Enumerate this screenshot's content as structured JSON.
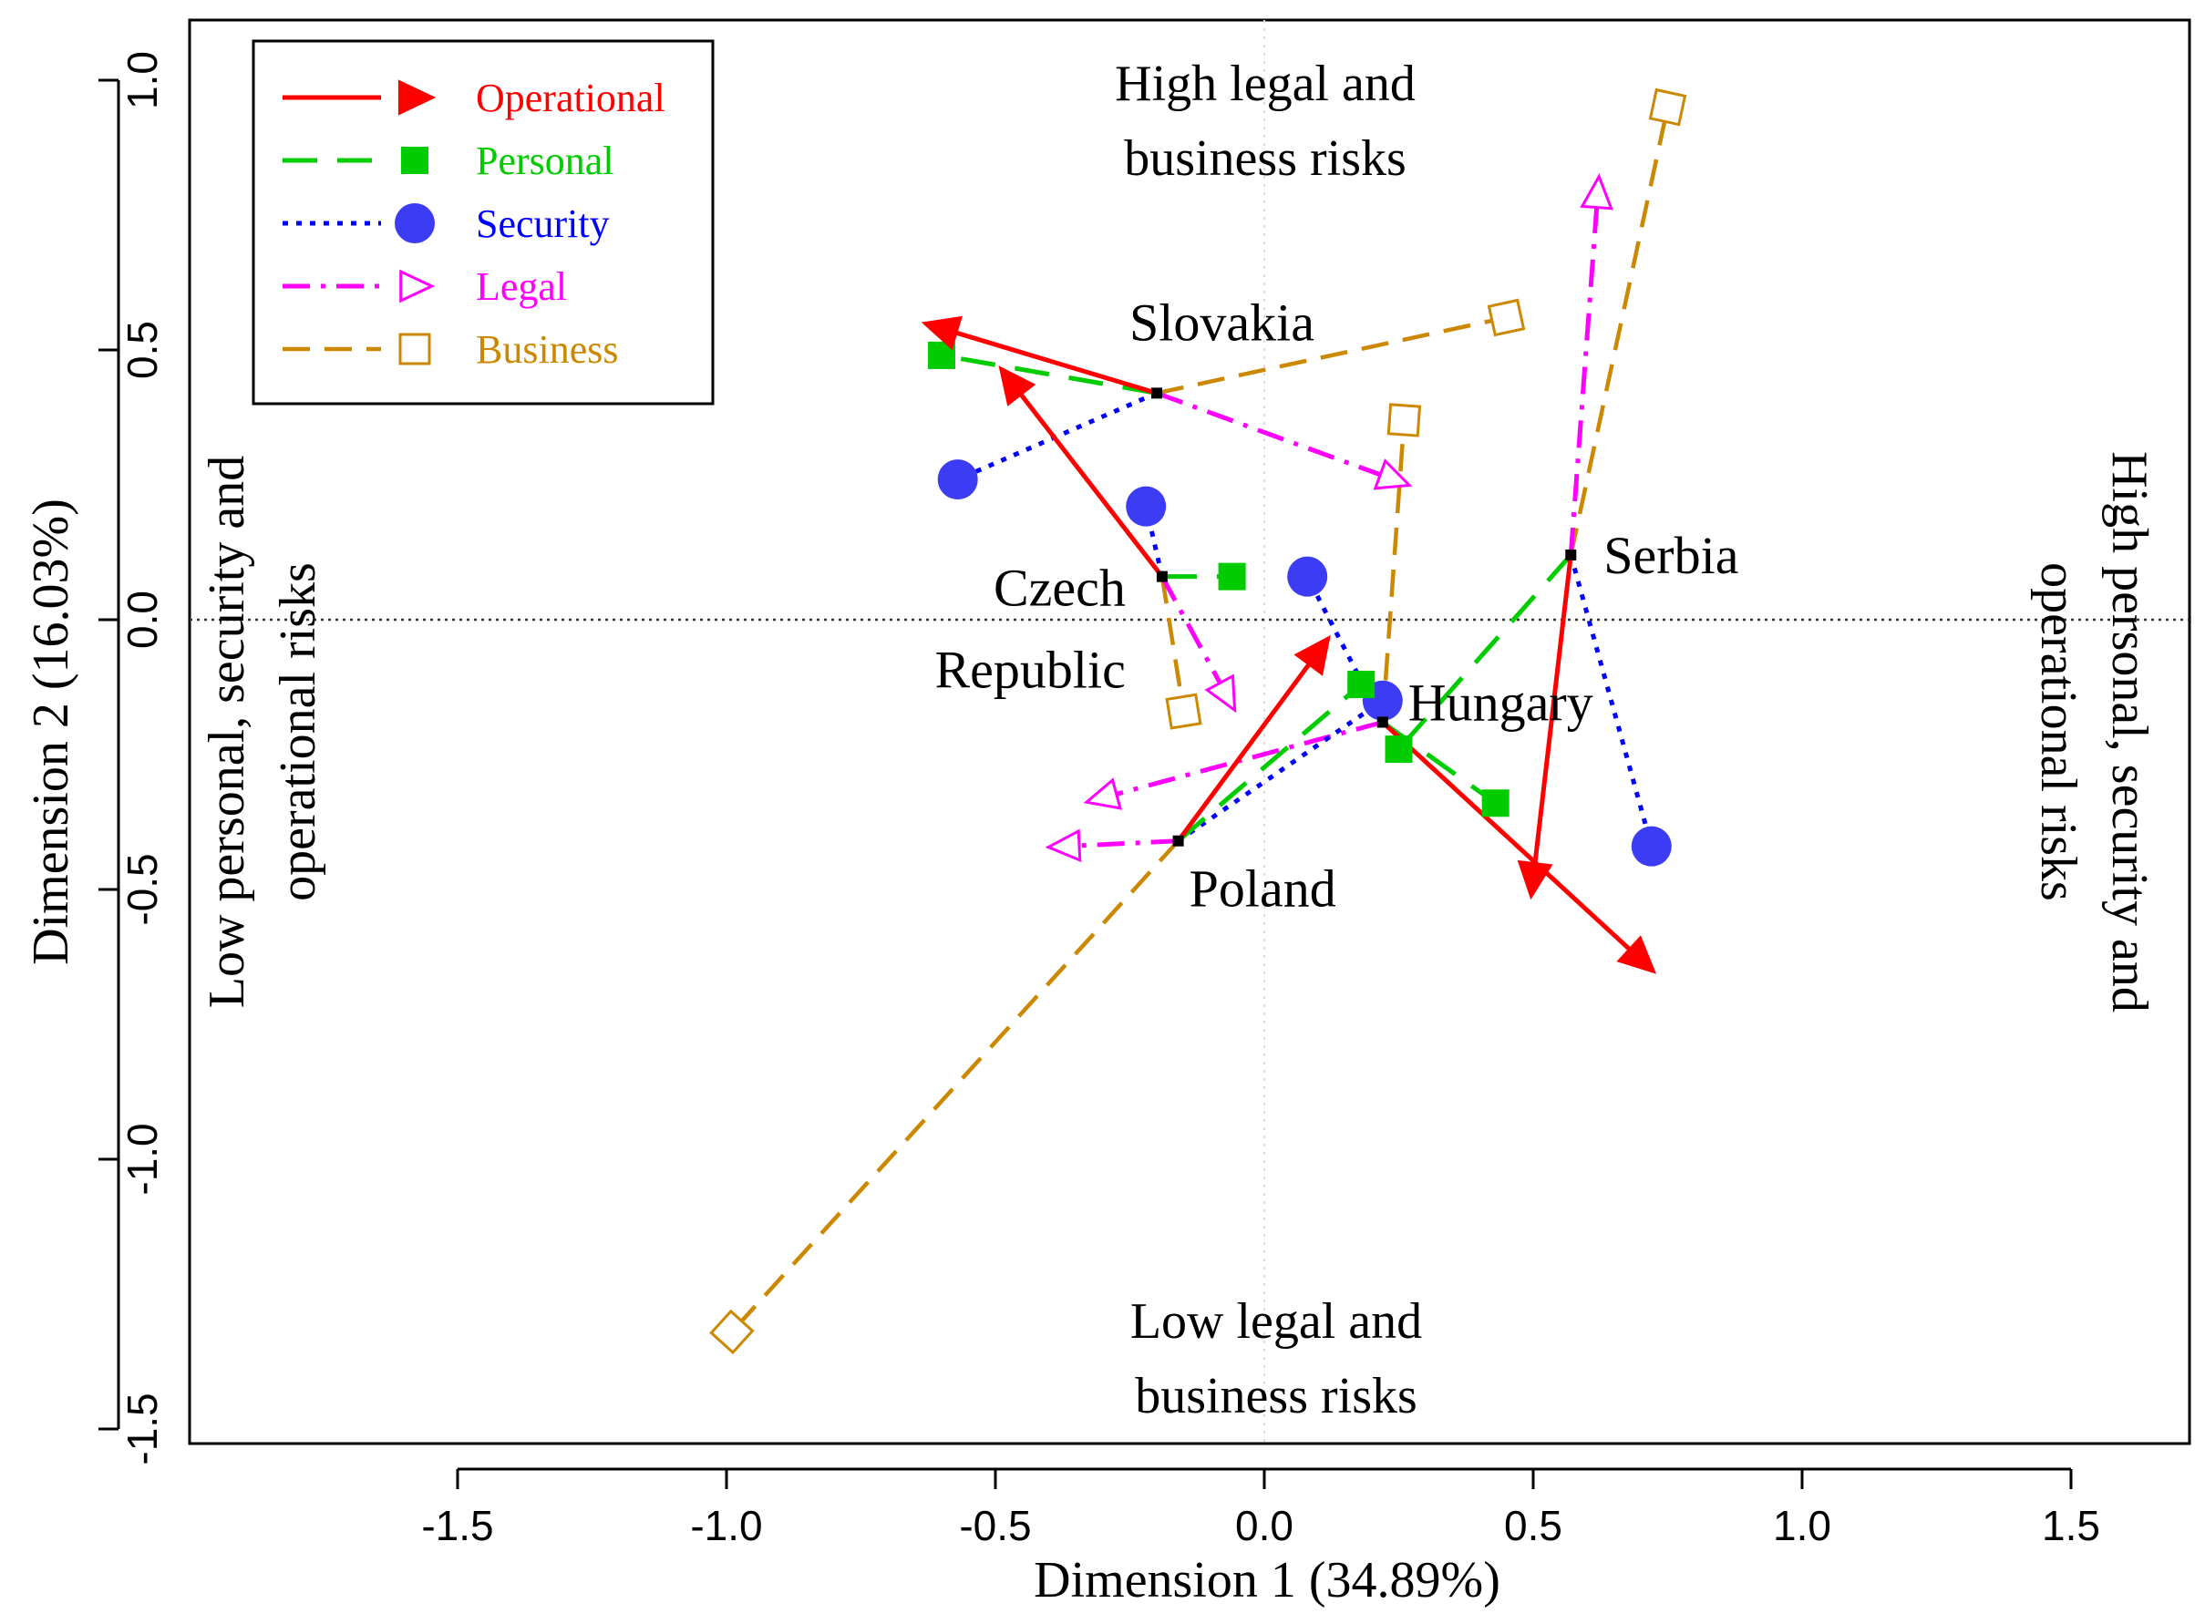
{
  "chart_data": {
    "type": "scatter",
    "xlabel": "Dimension 1 (34.89%)",
    "ylabel": "Dimension 2 (16.03%)",
    "xlim": [
      -2.0,
      1.75
    ],
    "ylim": [
      -1.55,
      1.1
    ],
    "x_ticks": [
      "-1.5",
      "-1.0",
      "-0.5",
      "0.0",
      "0.5",
      "1.0",
      "1.5"
    ],
    "y_ticks": [
      "1.0",
      "0.5",
      "0.0",
      "-0.5",
      "-1.0",
      "-1.5"
    ],
    "annotations": {
      "top": [
        "High legal and",
        "business risks"
      ],
      "bottom": [
        "Low legal and",
        "business risks"
      ],
      "left": [
        "Low personal, security and",
        "operational risks"
      ],
      "right": [
        "High personal, security and",
        "operational risks"
      ]
    },
    "legend": [
      {
        "name": "Operational",
        "color": "#ff0000",
        "line": "solid",
        "marker": "triangle-filled"
      },
      {
        "name": "Personal",
        "color": "#00cc00",
        "line": "dashed",
        "marker": "square-filled"
      },
      {
        "name": "Security",
        "color": "#0000ff",
        "line": "dotted",
        "marker": "circle-filled"
      },
      {
        "name": "Legal",
        "color": "#ff00ff",
        "line": "dashdot",
        "marker": "triangle-open"
      },
      {
        "name": "Business",
        "color": "#cc8800",
        "line": "longdash",
        "marker": "square-open"
      }
    ],
    "countries": [
      {
        "name": "Slovakia",
        "label": [
          "Slovakia"
        ],
        "x": -0.2,
        "y": 0.42,
        "vectors": {
          "Operational": [
            -0.6,
            0.54
          ],
          "Personal": [
            -0.6,
            0.49
          ],
          "Security": [
            -0.57,
            0.26
          ],
          "Legal": [
            0.24,
            0.26
          ],
          "Business": [
            0.45,
            0.56
          ]
        }
      },
      {
        "name": "Czech Republic",
        "label": [
          "Czech",
          "Republic"
        ],
        "x": -0.19,
        "y": 0.08,
        "vectors": {
          "Operational": [
            -0.47,
            0.44
          ],
          "Personal": [
            -0.06,
            0.08
          ],
          "Security": [
            -0.22,
            0.21
          ],
          "Legal": [
            -0.07,
            -0.14
          ],
          "Business": [
            -0.15,
            -0.17
          ]
        }
      },
      {
        "name": "Poland",
        "label": [
          "Poland"
        ],
        "x": -0.16,
        "y": -0.41,
        "vectors": {
          "Operational": [
            0.1,
            -0.06
          ],
          "Personal": [
            0.18,
            -0.12
          ],
          "Security": [
            0.22,
            -0.15
          ],
          "Legal": [
            -0.37,
            -0.42
          ],
          "Business": [
            -0.99,
            -1.32
          ]
        }
      },
      {
        "name": "Hungary",
        "label": [
          "Hungary"
        ],
        "x": 0.22,
        "y": -0.19,
        "vectors": {
          "Operational": [
            0.7,
            -0.63
          ],
          "Personal": [
            0.43,
            -0.34
          ],
          "Security": [
            0.08,
            0.08
          ],
          "Legal": [
            -0.3,
            -0.33
          ],
          "Business": [
            0.26,
            0.37
          ]
        }
      },
      {
        "name": "Serbia",
        "label": [
          "Serbia"
        ],
        "x": 0.57,
        "y": 0.12,
        "vectors": {
          "Operational": [
            0.5,
            -0.48
          ],
          "Personal": [
            0.25,
            -0.24
          ],
          "Security": [
            0.72,
            -0.42
          ],
          "Legal": [
            0.62,
            0.79
          ],
          "Business": [
            0.75,
            0.95
          ]
        }
      }
    ]
  }
}
